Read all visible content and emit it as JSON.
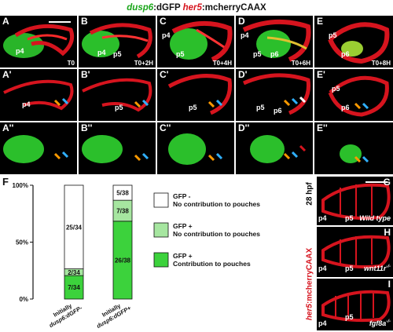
{
  "title": {
    "gene_green": "dusp6",
    "green_rest": ":dGFP ",
    "gene_red": "her5",
    "red_rest": ":mcherryCAAX"
  },
  "rows": [
    {
      "panels": [
        {
          "label": "A",
          "time": "T0",
          "tags": [
            "p4"
          ]
        },
        {
          "label": "B",
          "time": "T0+2H",
          "tags": [
            "p4",
            "p5"
          ]
        },
        {
          "label": "C",
          "time": "T0+4H",
          "tags": [
            "p4",
            "p5"
          ]
        },
        {
          "label": "D",
          "time": "T0+6H",
          "tags": [
            "p4",
            "p5",
            "p6"
          ]
        },
        {
          "label": "E",
          "time": "T0+8H",
          "tags": [
            "p5",
            "p6"
          ]
        }
      ]
    },
    {
      "panels": [
        {
          "label": "A'",
          "tags": [
            "p4"
          ]
        },
        {
          "label": "B'",
          "tags": [
            "p5"
          ]
        },
        {
          "label": "C'",
          "tags": [
            "p5"
          ]
        },
        {
          "label": "D'",
          "tags": [
            "p5",
            "p6"
          ]
        },
        {
          "label": "E'",
          "tags": [
            "p5",
            "p6"
          ]
        }
      ]
    },
    {
      "panels": [
        {
          "label": "A''",
          "tags": []
        },
        {
          "label": "B''",
          "tags": []
        },
        {
          "label": "C''",
          "tags": []
        },
        {
          "label": "D''",
          "tags": []
        },
        {
          "label": "E''",
          "tags": []
        }
      ]
    }
  ],
  "panel_f": {
    "label": "F"
  },
  "chart_data": {
    "type": "bar",
    "stacked": true,
    "categories": [
      "Initially dusp6:dGFP-",
      "Initially dusp6:dGFP+"
    ],
    "ylim": [
      0,
      100
    ],
    "yticks": [
      "0%",
      "50%",
      "100%"
    ],
    "series": [
      {
        "name": "GFP + Contribution to pouches",
        "color": "#3cd23c",
        "values": [
          20.6,
          68.4
        ],
        "labels": [
          "7/34",
          "26/38"
        ]
      },
      {
        "name": "GFP + No contribution to pouches",
        "color": "#a6e6a0",
        "values": [
          5.9,
          18.4
        ],
        "labels": [
          "2/34",
          "7/38"
        ]
      },
      {
        "name": "GFP - No contribution to pouches",
        "color": "#ffffff",
        "values": [
          73.5,
          13.2
        ],
        "labels": [
          "25/34",
          "5/38"
        ]
      }
    ],
    "xlabels": [
      {
        "line1": "Initially",
        "line2": "dusp6:dGFP-"
      },
      {
        "line1": "Initially",
        "line2": "dusp6:dGFP+"
      }
    ],
    "legend": [
      {
        "line1": "GFP -",
        "line2": "No contribution to pouches",
        "color": "#ffffff"
      },
      {
        "line1": "GFP +",
        "line2": "No contribution to pouches",
        "color": "#a6e6a0"
      },
      {
        "line1": "GFP +",
        "line2": "Contribution to pouches",
        "color": "#3cd23c"
      }
    ]
  },
  "side_label": {
    "gene": "her5",
    "rest": ":mcherryCAAX",
    "stage": "28 hpf"
  },
  "genotype_panels": [
    {
      "label": "G",
      "genotype": "Wild type",
      "tags": [
        "p4",
        "p5"
      ]
    },
    {
      "label": "H",
      "genotype": "wnt11r",
      "genotype_sup": "-/-",
      "tags": [
        "p4",
        "p5"
      ]
    },
    {
      "label": "I",
      "genotype": "fgf8a",
      "genotype_sup": "-/-",
      "tags": [
        "p4",
        "p5"
      ]
    }
  ]
}
